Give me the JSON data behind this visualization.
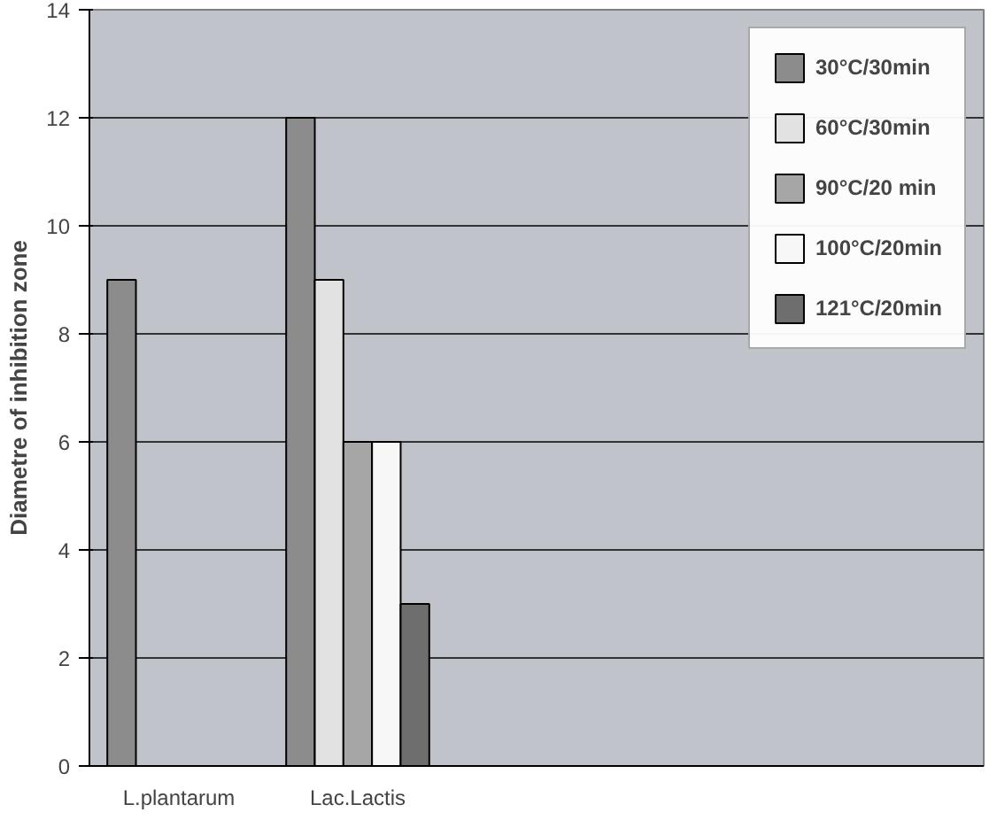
{
  "chart_data": {
    "type": "bar",
    "ylabel": "Diametre of inhibition zone",
    "categories": [
      "L.plantarum",
      "Lac.Lactis",
      null,
      null,
      null
    ],
    "series": [
      {
        "name": "30°C/30min",
        "color": "#8c8c8c",
        "values": [
          9,
          12,
          null,
          null,
          null
        ]
      },
      {
        "name": "60°C/30min",
        "color": "#e2e2e2",
        "values": [
          null,
          9,
          null,
          null,
          null
        ]
      },
      {
        "name": "90°C/20 min",
        "color": "#a6a6a6",
        "values": [
          null,
          6,
          null,
          null,
          null
        ]
      },
      {
        "name": "100°C/20min",
        "color": "#f7f7f7",
        "values": [
          null,
          6,
          null,
          null,
          null
        ]
      },
      {
        "name": "121°C/20min",
        "color": "#6e6e6e",
        "values": [
          null,
          3,
          null,
          null,
          null
        ]
      }
    ],
    "ylim": [
      0,
      14
    ],
    "yticks": [
      0,
      2,
      4,
      6,
      8,
      10,
      12,
      14
    ],
    "grid": "y",
    "legend": "top right"
  }
}
